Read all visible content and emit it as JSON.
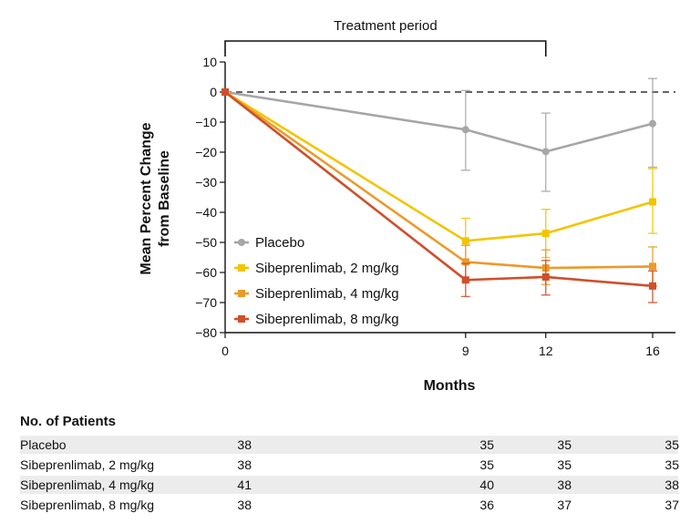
{
  "chart_data": {
    "type": "line",
    "annotation": "Treatment period",
    "xlabel": "Months",
    "ylabel": [
      "Mean Percent Change",
      "from Baseline"
    ],
    "x": [
      0,
      9,
      12,
      16
    ],
    "x_ticks": [
      0,
      9,
      12,
      16
    ],
    "xlim": [
      0,
      16
    ],
    "y_ticks": [
      10,
      0,
      -10,
      -20,
      -30,
      -40,
      -50,
      -60,
      -70,
      -80
    ],
    "y_tick_labels": [
      "10",
      "0",
      "−10",
      "−20",
      "−30",
      "−40",
      "−50",
      "−60",
      "−70",
      "−80"
    ],
    "ylim": [
      -80,
      10
    ],
    "reference_line": 0,
    "treatment_period": [
      0,
      12
    ],
    "legend_position": "lower-left",
    "series": [
      {
        "name": "Placebo",
        "color": "#a6a6a6",
        "values": [
          0,
          -12.5,
          -19.8,
          -10.5
        ],
        "error_low": [
          0,
          -26,
          -33,
          -25
        ],
        "error_high": [
          0,
          0.5,
          -7,
          4.5
        ]
      },
      {
        "name": "Sibeprenlimab, 2 mg/kg",
        "color": "#f2c500",
        "values": [
          0,
          -49.5,
          -47,
          -36.5
        ],
        "error_low": [
          0,
          -57,
          -55,
          -47
        ],
        "error_high": [
          0,
          -42,
          -39,
          -25.5
        ]
      },
      {
        "name": "Sibeprenlimab, 4 mg/kg",
        "color": "#eb9a2a",
        "values": [
          0,
          -56.5,
          -58.5,
          -58
        ],
        "error_low": [
          0,
          -63,
          -64,
          -64.5
        ],
        "error_high": [
          0,
          -51,
          -52.5,
          -51.5
        ]
      },
      {
        "name": "Sibeprenlimab, 8 mg/kg",
        "color": "#cf4f2a",
        "values": [
          0,
          -62.5,
          -61.5,
          -64.5
        ],
        "error_low": [
          0,
          -68,
          -67.5,
          -70
        ],
        "error_high": [
          0,
          -57,
          -56,
          -59.5
        ]
      }
    ]
  },
  "patients_table": {
    "title": "No. of Patients",
    "rows": [
      {
        "label": "Placebo",
        "values": [
          "38",
          "35",
          "35",
          "35"
        ]
      },
      {
        "label": "Sibeprenlimab, 2 mg/kg",
        "values": [
          "38",
          "35",
          "35",
          "35"
        ]
      },
      {
        "label": "Sibeprenlimab, 4 mg/kg",
        "values": [
          "41",
          "40",
          "38",
          "38"
        ]
      },
      {
        "label": "Sibeprenlimab, 8 mg/kg",
        "values": [
          "38",
          "36",
          "37",
          "37"
        ]
      }
    ]
  }
}
